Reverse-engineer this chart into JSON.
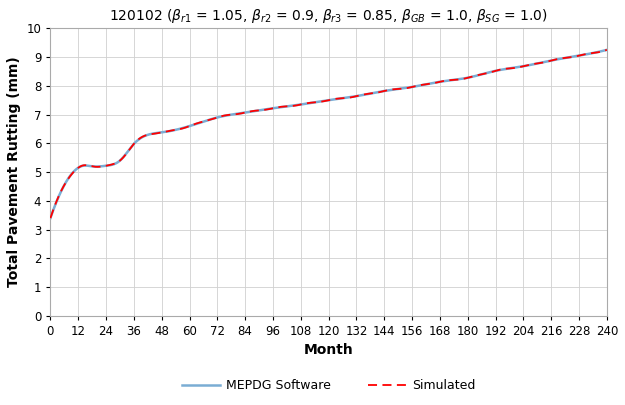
{
  "title": "120102 ($\\beta_{r1}$ = 1.05, $\\beta_{r2}$ = 0.9, $\\beta_{r3}$ = 0.85, $\\beta_{GB}$ = 1.0, $\\beta_{SG}$ = 1.0)",
  "xlabel": "Month",
  "ylabel": "Total Pavement Rutting (mm)",
  "xlim": [
    0,
    240
  ],
  "ylim": [
    0,
    10
  ],
  "xticks": [
    0,
    12,
    24,
    36,
    48,
    60,
    72,
    84,
    96,
    108,
    120,
    132,
    144,
    156,
    168,
    180,
    192,
    204,
    216,
    228,
    240
  ],
  "yticks": [
    0,
    1,
    2,
    3,
    4,
    5,
    6,
    7,
    8,
    9,
    10
  ],
  "mepdg_color": "#7aadd4",
  "sim_color": "#ff0000",
  "background_color": "#ffffff",
  "grid_color": "#d0d0d0",
  "title_fontsize": 10,
  "label_fontsize": 10,
  "tick_fontsize": 8.5,
  "legend_fontsize": 9,
  "legend_mepdg": "MEPDG Software",
  "legend_sim": "Simulated"
}
